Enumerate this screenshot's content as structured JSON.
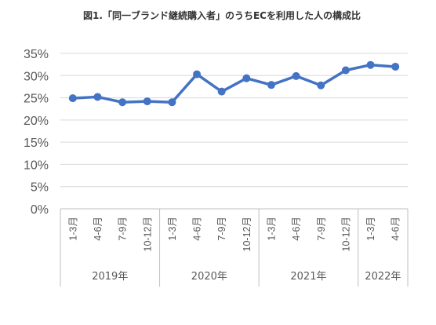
{
  "chart_data": {
    "type": "line",
    "title": "図1.「同一ブランド継続購入者」のうちECを利用した人の構成比",
    "xlabel": "",
    "ylabel": "",
    "ylim": [
      0,
      35
    ],
    "yticks": [
      "0%",
      "5%",
      "10%",
      "15%",
      "20%",
      "25%",
      "30%",
      "35%"
    ],
    "grid": true,
    "legend": "none",
    "color": "#4472C4",
    "categories": [
      "1-3月",
      "4-6月",
      "7-9月",
      "10-12月",
      "1-3月",
      "4-6月",
      "7-9月",
      "10-12月",
      "1-3月",
      "4-6月",
      "7-9月",
      "10-12月",
      "1-3月",
      "4-6月"
    ],
    "years": [
      {
        "label": "2019年",
        "span": 4
      },
      {
        "label": "2020年",
        "span": 4
      },
      {
        "label": "2021年",
        "span": 4
      },
      {
        "label": "2022年",
        "span": 2
      }
    ],
    "series": [
      {
        "values": [
          24.9,
          25.2,
          24.0,
          24.2,
          24.0,
          30.3,
          26.4,
          29.4,
          27.9,
          29.9,
          27.8,
          31.2,
          32.4,
          32.0
        ]
      }
    ]
  }
}
